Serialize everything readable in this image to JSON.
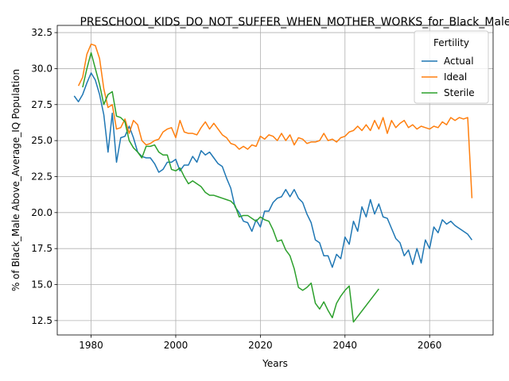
{
  "chart_data": {
    "type": "line",
    "title": "PRESCHOOL_KIDS_DO_NOT_SUFFER_WHEN_MOTHER_WORKS_for_Black_Male_",
    "xlabel": "Years",
    "ylabel": "% of Black_Male Above_Average_IQ Population",
    "xlim": [
      1972,
      2075
    ],
    "ylim": [
      11.5,
      33.0
    ],
    "xticks": [
      1980,
      2000,
      2020,
      2040,
      2060
    ],
    "yticks": [
      12.5,
      15.0,
      17.5,
      20.0,
      22.5,
      25.0,
      27.5,
      30.0,
      32.5
    ],
    "xtick_labels": [
      "1980",
      "2000",
      "2020",
      "2040",
      "2060"
    ],
    "ytick_labels": [
      "12.5",
      "15.0",
      "17.5",
      "20.0",
      "22.5",
      "25.0",
      "27.5",
      "30.0",
      "32.5"
    ],
    "grid": true,
    "legend": {
      "title": "Fertility",
      "position": "top-right"
    },
    "series": [
      {
        "name": "Actual",
        "color": "#1f77b4",
        "x": [
          1976,
          1977,
          1978,
          1979,
          1980,
          1981,
          1982,
          1983,
          1984,
          1985,
          1986,
          1987,
          1988,
          1989,
          1990,
          1991,
          1992,
          1993,
          1994,
          1995,
          1996,
          1997,
          1998,
          1999,
          2000,
          2001,
          2002,
          2003,
          2004,
          2005,
          2006,
          2007,
          2008,
          2009,
          2010,
          2011,
          2012,
          2013,
          2014,
          2015,
          2016,
          2017,
          2018,
          2019,
          2020,
          2021,
          2022,
          2023,
          2024,
          2025,
          2026,
          2027,
          2028,
          2029,
          2030,
          2031,
          2032,
          2033,
          2034,
          2035,
          2036,
          2037,
          2038,
          2039,
          2040,
          2041,
          2042,
          2043,
          2044,
          2045,
          2046,
          2047,
          2048,
          2049,
          2050,
          2051,
          2052,
          2053,
          2054,
          2055,
          2056,
          2057,
          2058,
          2059,
          2060,
          2061,
          2062,
          2063,
          2064,
          2065,
          2066,
          2067,
          2068,
          2069,
          2070
        ],
        "y": [
          28.1,
          27.7,
          28.2,
          29.0,
          29.7,
          29.2,
          28.2,
          26.8,
          24.2,
          26.9,
          23.5,
          25.2,
          25.3,
          26.0,
          25.2,
          24.2,
          23.9,
          23.8,
          23.8,
          23.4,
          22.8,
          23.0,
          23.5,
          23.5,
          23.7,
          22.9,
          23.3,
          23.3,
          23.9,
          23.5,
          24.3,
          24.0,
          24.2,
          23.8,
          23.4,
          23.2,
          22.4,
          21.7,
          20.4,
          20.0,
          19.4,
          19.3,
          18.7,
          19.5,
          19.0,
          20.1,
          20.1,
          20.7,
          21.0,
          21.1,
          21.6,
          21.1,
          21.6,
          21.0,
          20.7,
          19.9,
          19.3,
          18.1,
          17.9,
          17.0,
          17.0,
          16.2,
          17.1,
          16.8,
          18.3,
          17.8,
          19.4,
          18.7,
          20.4,
          19.7,
          20.9,
          19.9,
          20.6,
          19.7,
          19.6,
          18.9,
          18.2,
          17.9,
          17.0,
          17.4,
          16.4,
          17.5,
          16.5,
          18.1,
          17.5,
          19.0,
          18.6,
          19.5,
          19.2,
          19.4,
          19.1,
          18.9,
          18.7,
          18.5,
          18.1
        ]
      },
      {
        "name": "Ideal",
        "color": "#ff7f0e",
        "x": [
          1977,
          1978,
          1979,
          1980,
          1981,
          1982,
          1983,
          1984,
          1985,
          1986,
          1987,
          1988,
          1989,
          1990,
          1991,
          1992,
          1993,
          1994,
          1995,
          1996,
          1997,
          1998,
          1999,
          2000,
          2001,
          2002,
          2003,
          2004,
          2005,
          2006,
          2007,
          2008,
          2009,
          2010,
          2011,
          2012,
          2013,
          2014,
          2015,
          2016,
          2017,
          2018,
          2019,
          2020,
          2021,
          2022,
          2023,
          2024,
          2025,
          2026,
          2027,
          2028,
          2029,
          2030,
          2031,
          2032,
          2033,
          2034,
          2035,
          2036,
          2037,
          2038,
          2039,
          2040,
          2041,
          2042,
          2043,
          2044,
          2045,
          2046,
          2047,
          2048,
          2049,
          2050,
          2051,
          2052,
          2053,
          2054,
          2055,
          2056,
          2057,
          2058,
          2059,
          2060,
          2061,
          2062,
          2063,
          2064,
          2065,
          2066,
          2067,
          2068,
          2069,
          2070
        ],
        "y": [
          28.8,
          29.4,
          31.0,
          31.7,
          31.6,
          30.7,
          28.6,
          27.3,
          27.5,
          25.8,
          25.9,
          26.5,
          25.5,
          26.4,
          26.1,
          25.0,
          24.7,
          24.8,
          25.0,
          25.1,
          25.6,
          25.8,
          25.9,
          25.2,
          26.4,
          25.6,
          25.5,
          25.5,
          25.4,
          25.9,
          26.3,
          25.8,
          26.2,
          25.8,
          25.4,
          25.2,
          24.8,
          24.7,
          24.4,
          24.6,
          24.4,
          24.7,
          24.6,
          25.3,
          25.1,
          25.4,
          25.3,
          25.0,
          25.5,
          25.0,
          25.4,
          24.7,
          25.2,
          25.1,
          24.8,
          24.9,
          24.9,
          25.0,
          25.5,
          25.0,
          25.1,
          24.9,
          25.2,
          25.3,
          25.6,
          25.7,
          26.0,
          25.7,
          26.1,
          25.7,
          26.4,
          25.8,
          26.6,
          25.5,
          26.4,
          25.9,
          26.2,
          26.4,
          25.9,
          26.1,
          25.8,
          26.0,
          25.9,
          25.8,
          26.0,
          25.9,
          26.3,
          26.1,
          26.6,
          26.4,
          26.6,
          26.5,
          26.6,
          21.0
        ]
      },
      {
        "name": "Sterile",
        "color": "#2ca02c",
        "x": [
          1978,
          1979,
          1980,
          1981,
          1982,
          1983,
          1984,
          1985,
          1986,
          1987,
          1988,
          1989,
          1990,
          1991,
          1992,
          1993,
          1994,
          1995,
          1996,
          1997,
          1998,
          1999,
          2000,
          2001,
          2002,
          2003,
          2004,
          2005,
          2006,
          2007,
          2008,
          2009,
          2010,
          2011,
          2012,
          2013,
          2014,
          2015,
          2016,
          2017,
          2018,
          2019,
          2020,
          2021,
          2022,
          2023,
          2024,
          2025,
          2026,
          2027,
          2028,
          2029,
          2030,
          2031,
          2032,
          2033,
          2034,
          2035,
          2036,
          2037,
          2038,
          2039,
          2040,
          2041,
          2042,
          2048
        ],
        "y": [
          28.7,
          30.0,
          31.1,
          30.0,
          28.9,
          27.5,
          28.2,
          28.4,
          26.7,
          26.6,
          26.3,
          25.0,
          24.5,
          24.2,
          23.8,
          24.6,
          24.6,
          24.7,
          24.2,
          24.0,
          24.0,
          23.0,
          22.9,
          23.1,
          22.5,
          22.0,
          22.2,
          22.0,
          21.8,
          21.4,
          21.2,
          21.2,
          21.1,
          21.0,
          20.9,
          20.8,
          20.5,
          19.7,
          19.8,
          19.8,
          19.6,
          19.4,
          19.7,
          19.5,
          19.4,
          18.8,
          18.0,
          18.1,
          17.4,
          17.0,
          16.1,
          14.8,
          14.6,
          14.8,
          15.1,
          13.7,
          13.3,
          13.8,
          13.2,
          12.7,
          13.7,
          14.2,
          14.6,
          14.9,
          12.4,
          14.7
        ]
      }
    ]
  }
}
